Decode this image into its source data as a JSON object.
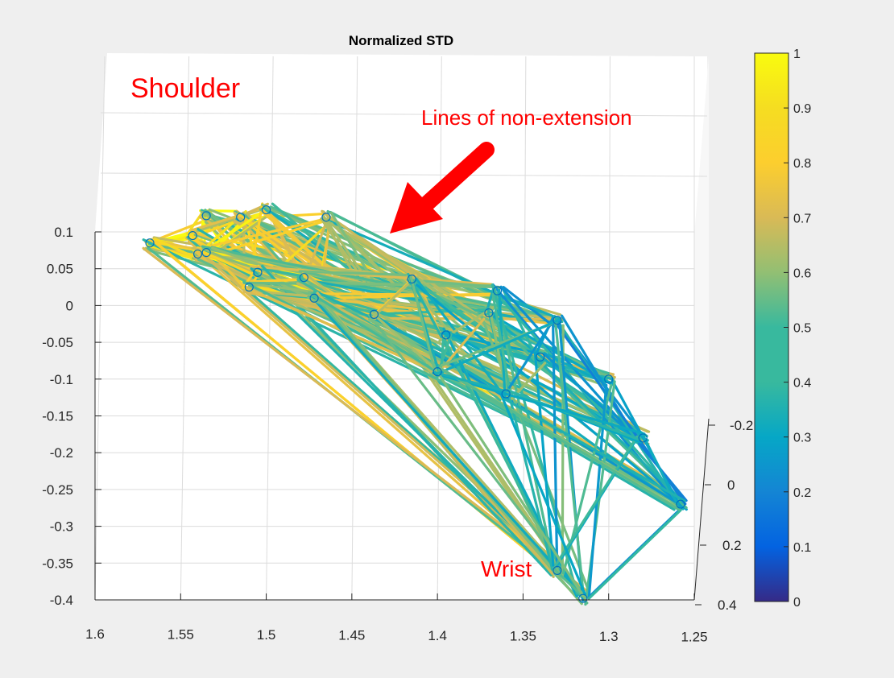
{
  "chart_data": {
    "type": "line",
    "title": "Normalized STD",
    "xlabel": "",
    "ylabel": "",
    "zlabel": "",
    "x_ticks": [
      "1.6",
      "1.55",
      "1.5",
      "1.45",
      "1.4",
      "1.35",
      "1.3",
      "1.25"
    ],
    "y_ticks": [
      "0.1",
      "0.05",
      "0",
      "-0.05",
      "-0.1",
      "-0.15",
      "-0.2",
      "-0.25",
      "-0.3",
      "-0.35",
      "-0.4"
    ],
    "z_ticks": [
      "-0.2",
      "0",
      "0.2",
      "0.4"
    ],
    "colorbar": {
      "colormap": "parula",
      "range": [
        0,
        1
      ],
      "ticks": [
        "0",
        "0.1",
        "0.2",
        "0.3",
        "0.4",
        "0.5",
        "0.6",
        "0.7",
        "0.8",
        "0.9",
        "1"
      ]
    },
    "grid": true,
    "nodes": [
      {
        "x": 1.568,
        "y": 0.085
      },
      {
        "x": 1.535,
        "y": 0.122
      },
      {
        "x": 1.543,
        "y": 0.095
      },
      {
        "x": 1.515,
        "y": 0.12
      },
      {
        "x": 1.5,
        "y": 0.13
      },
      {
        "x": 1.465,
        "y": 0.12
      },
      {
        "x": 1.54,
        "y": 0.07
      },
      {
        "x": 1.535,
        "y": 0.072
      },
      {
        "x": 1.505,
        "y": 0.045
      },
      {
        "x": 1.51,
        "y": 0.025
      },
      {
        "x": 1.478,
        "y": 0.038
      },
      {
        "x": 1.472,
        "y": 0.01
      },
      {
        "x": 1.437,
        "y": -0.012
      },
      {
        "x": 1.415,
        "y": 0.036
      },
      {
        "x": 1.395,
        "y": -0.04
      },
      {
        "x": 1.37,
        "y": -0.01
      },
      {
        "x": 1.365,
        "y": 0.02
      },
      {
        "x": 1.34,
        "y": -0.07
      },
      {
        "x": 1.33,
        "y": -0.02
      },
      {
        "x": 1.3,
        "y": -0.1
      },
      {
        "x": 1.28,
        "y": -0.18
      },
      {
        "x": 1.258,
        "y": -0.27
      },
      {
        "x": 1.33,
        "y": -0.36
      },
      {
        "x": 1.315,
        "y": -0.398
      },
      {
        "x": 1.36,
        "y": -0.12
      },
      {
        "x": 1.4,
        "y": -0.09
      }
    ],
    "edge_value_range": [
      0,
      1
    ],
    "edge_value_trend": "near shoulder ≈ 0.7–0.95, near wrist ≈ 0.2–0.45"
  },
  "annotations": {
    "shoulder": "Shoulder",
    "lines_of_non_extension": "Lines of non-extension",
    "wrist": "Wrist"
  },
  "colors": {
    "annotation_text": "#ff0000",
    "arrow": "#ff0000",
    "axes_background": "#ffffff",
    "figure_background": "#efefef",
    "grid": "#dcdcdc",
    "node_marker": "#0072bd"
  }
}
